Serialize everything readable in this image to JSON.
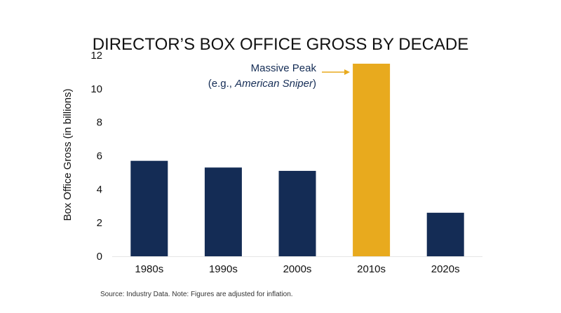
{
  "chart_data": {
    "type": "bar",
    "title": "DIRECTOR’S BOX OFFICE GROSS BY DECADE",
    "xlabel": "",
    "ylabel": "Box Office Gross (in billions)",
    "categories": [
      "1980s",
      "1990s",
      "2000s",
      "2010s",
      "2020s"
    ],
    "values": [
      5.7,
      5.3,
      5.1,
      11.5,
      2.6
    ],
    "ylim": [
      0,
      12
    ],
    "yticks": [
      0,
      2,
      4,
      6,
      8,
      10,
      12
    ],
    "grid": false,
    "colors": {
      "bar": "#142c55",
      "highlight": "#e8aa1e",
      "annotation_text": "#142c55",
      "arrow": "#e8aa1e"
    },
    "highlight_category": "2010s",
    "annotation": {
      "line1": "Massive Peak",
      "line2_prefix": "(e.g., ",
      "line2_italic": "American Sniper",
      "line2_suffix": ")"
    },
    "source_note": "Source: Industry Data. Note: Figures are adjusted for inflation."
  }
}
